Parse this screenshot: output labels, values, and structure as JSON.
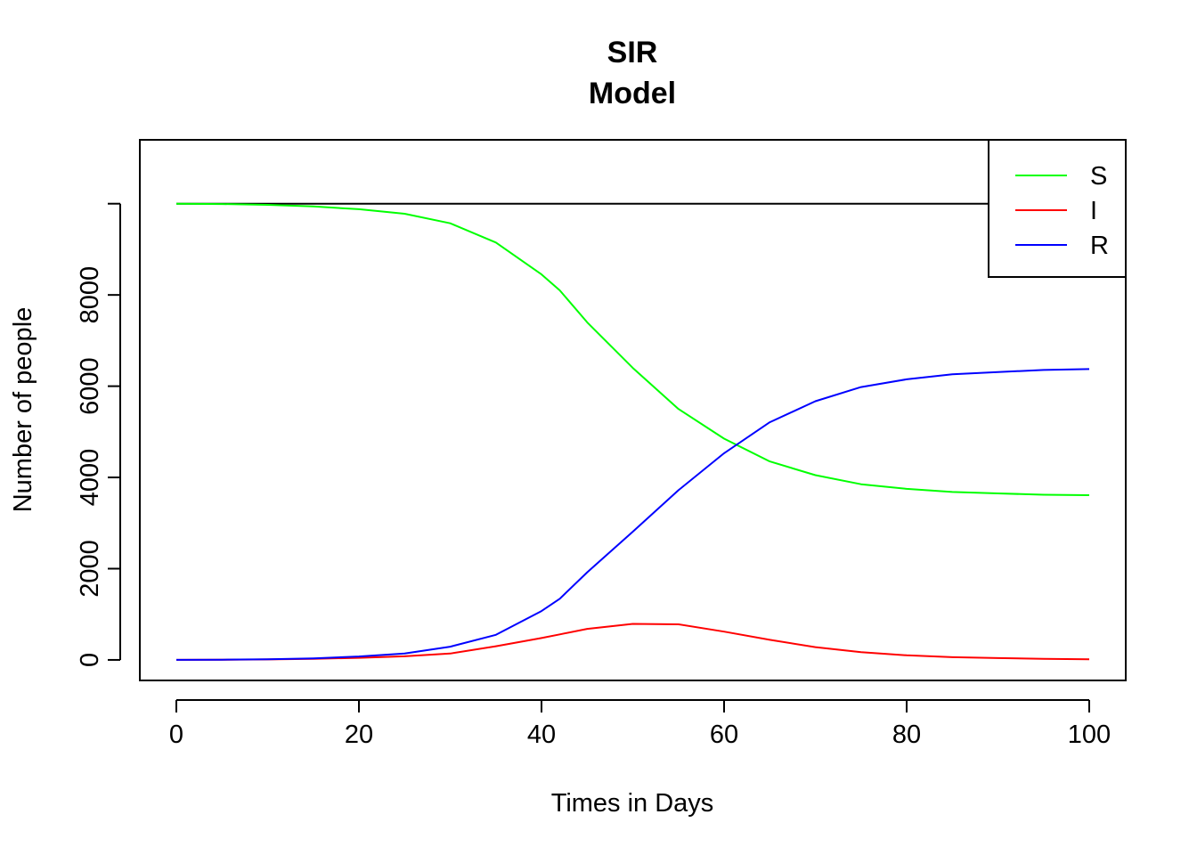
{
  "chart_data": {
    "type": "line",
    "title": [
      "SIR",
      "Model"
    ],
    "xlabel": "Times in Days",
    "ylabel": "Number of people",
    "xlim": [
      -4,
      104
    ],
    "ylim": [
      -450,
      11400
    ],
    "x_ticks": [
      0,
      20,
      40,
      60,
      80,
      100
    ],
    "y_ticks": [
      0,
      2000,
      4000,
      6000,
      8000
    ],
    "x_tick_labels": [
      "0",
      "20",
      "40",
      "60",
      "80",
      "100"
    ],
    "y_tick_labels": [
      "0",
      "2000",
      "4000",
      "6000",
      "8000"
    ],
    "grid": false,
    "legend_position": "top-right",
    "reference_line": {
      "y": 10000,
      "x_range": [
        0,
        100
      ],
      "color": "#000000"
    },
    "x": [
      0,
      5,
      10,
      15,
      20,
      25,
      30,
      35,
      40,
      42,
      45,
      50,
      55,
      60,
      65,
      70,
      75,
      80,
      85,
      90,
      95,
      100
    ],
    "series": [
      {
        "name": "S",
        "color": "#00ff00",
        "values": [
          9999,
          9993,
          9975,
          9940,
          9880,
          9780,
          9570,
          9150,
          8450,
          8100,
          7400,
          6400,
          5500,
          4850,
          4350,
          4050,
          3850,
          3750,
          3680,
          3650,
          3620,
          3610
        ]
      },
      {
        "name": "I",
        "color": "#ff0000",
        "values": [
          1,
          3,
          10,
          25,
          45,
          80,
          140,
          300,
          480,
          560,
          680,
          790,
          780,
          620,
          440,
          280,
          170,
          100,
          60,
          40,
          25,
          15
        ]
      },
      {
        "name": "R",
        "color": "#0000ff",
        "values": [
          0,
          4,
          15,
          35,
          75,
          140,
          290,
          550,
          1070,
          1340,
          1920,
          2810,
          3720,
          4530,
          5210,
          5670,
          5980,
          6150,
          6260,
          6310,
          6355,
          6375
        ]
      }
    ]
  }
}
